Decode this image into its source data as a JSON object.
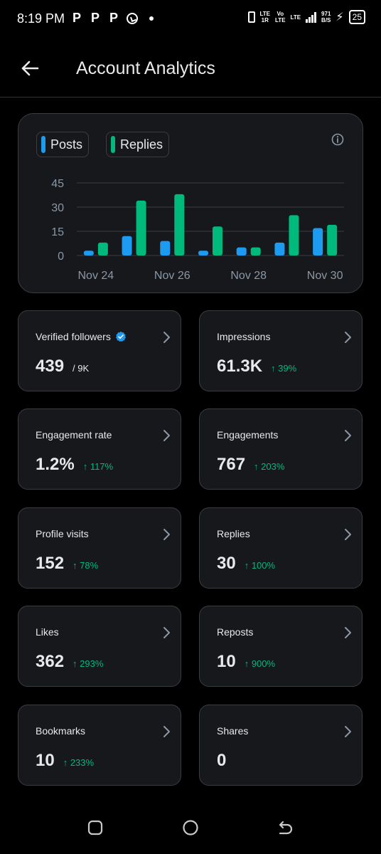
{
  "status": {
    "time": "8:19 PM",
    "app_icons": [
      "P",
      "P",
      "P"
    ],
    "network_left": "LTE",
    "network_left_sub": "1R",
    "volte_top": "Vo",
    "volte_bottom": "LTE",
    "network_right": "LTE",
    "speed_top": "971",
    "speed_bottom": "B/S",
    "battery": "25"
  },
  "header": {
    "title": "Account Analytics"
  },
  "legend": [
    {
      "label": "Posts",
      "color": "#1d9bf0"
    },
    {
      "label": "Replies",
      "color": "#00ba7c"
    }
  ],
  "chart_data": {
    "type": "bar",
    "categories": [
      "Nov 24",
      "Nov 25",
      "Nov 26",
      "Nov 27",
      "Nov 28",
      "Nov 29",
      "Nov 30"
    ],
    "x_tick_labels": [
      "Nov 24",
      "Nov 26",
      "Nov 28",
      "Nov 30"
    ],
    "series": [
      {
        "name": "Posts",
        "color": "#1d9bf0",
        "values": [
          3,
          12,
          9,
          3,
          5,
          8,
          17
        ]
      },
      {
        "name": "Replies",
        "color": "#00ba7c",
        "values": [
          8,
          34,
          38,
          18,
          5,
          25,
          19
        ]
      }
    ],
    "y_ticks": [
      0,
      15,
      30,
      45
    ],
    "ylim": [
      0,
      45
    ],
    "grid": true,
    "legend_position": "top-left"
  },
  "metrics": [
    {
      "label": "Verified followers",
      "value": "439",
      "sub": "/ 9K",
      "change": "",
      "verified": true
    },
    {
      "label": "Impressions",
      "value": "61.3K",
      "sub": "",
      "change": "↑ 39%"
    },
    {
      "label": "Engagement rate",
      "value": "1.2%",
      "sub": "",
      "change": "↑ 117%"
    },
    {
      "label": "Engagements",
      "value": "767",
      "sub": "",
      "change": "↑ 203%"
    },
    {
      "label": "Profile visits",
      "value": "152",
      "sub": "",
      "change": "↑ 78%"
    },
    {
      "label": "Replies",
      "value": "30",
      "sub": "",
      "change": "↑ 100%"
    },
    {
      "label": "Likes",
      "value": "362",
      "sub": "",
      "change": "↑ 293%"
    },
    {
      "label": "Reposts",
      "value": "10",
      "sub": "",
      "change": "↑ 900%"
    },
    {
      "label": "Bookmarks",
      "value": "10",
      "sub": "",
      "change": "↑ 233%"
    },
    {
      "label": "Shares",
      "value": "0",
      "sub": "",
      "change": ""
    }
  ],
  "colors": {
    "accent_blue": "#1d9bf0",
    "accent_green": "#00ba7c",
    "card_bg": "#16181c",
    "border": "#3a3d42"
  }
}
